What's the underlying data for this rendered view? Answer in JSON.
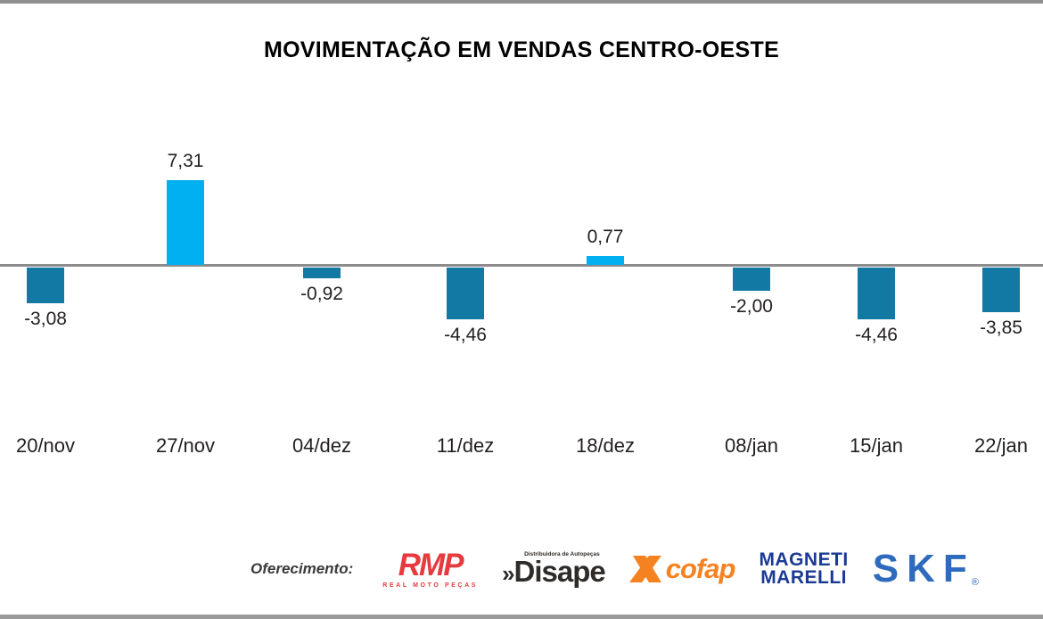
{
  "chart_data": {
    "type": "bar",
    "title": "MOVIMENTAÇÃO EM VENDAS CENTRO-OESTE",
    "categories": [
      "20/nov",
      "27/nov",
      "04/dez",
      "11/dez",
      "18/dez",
      "08/jan",
      "15/jan",
      "22/jan"
    ],
    "values": [
      -3.08,
      7.31,
      -0.92,
      -4.46,
      0.77,
      -2.0,
      -4.46,
      -3.85
    ],
    "value_labels": [
      "-3,08",
      "7,31",
      "-0,92",
      "-4,46",
      "0,77",
      "-2,00",
      "-4,46",
      "-3,85"
    ],
    "xlabel": "",
    "ylabel": "",
    "baseline": 0,
    "grid": false,
    "legend": false,
    "colors": {
      "positive": "#00b0f0",
      "negative": "#1179a3",
      "axis": "#8c8c8c",
      "label": "#231f20"
    }
  },
  "footer": {
    "label": "Oferecimento:",
    "sponsors": [
      {
        "name": "RMP",
        "subtext": "REAL MOTO PEÇAS",
        "color": "#e63a3e"
      },
      {
        "name": "Disape",
        "prefix": "»",
        "subtext": "Distribuidora de Autopeças",
        "color": "#2e2b28"
      },
      {
        "name": "cofap",
        "color": "#f58220"
      },
      {
        "name": "Magneti Marelli",
        "lines": [
          "MAGNETI",
          "MARELLI"
        ],
        "color": "#1a3a94"
      },
      {
        "name": "SKF",
        "registered": "®",
        "color": "#2f6bbd"
      }
    ]
  }
}
